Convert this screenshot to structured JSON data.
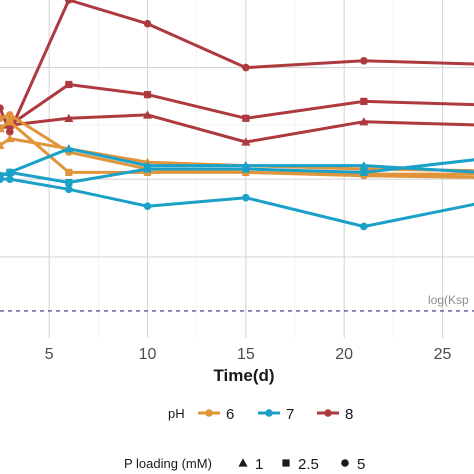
{
  "chart_data": {
    "type": "line",
    "xlabel": "Time(d)",
    "x_ticks": [
      5,
      10,
      15,
      20,
      25
    ],
    "xlim": [
      2.5,
      26.6
    ],
    "ylim": [
      0,
      10
    ],
    "grid": true,
    "reference_line": {
      "label": "log(Ksp",
      "y": 0.8,
      "color": "#33338c",
      "style": "dashed"
    },
    "legend": {
      "position": "bottom",
      "ph": {
        "title": "pH",
        "labels": [
          "6",
          "7",
          "8"
        ]
      },
      "ploading": {
        "title": "P loading (mM)",
        "labels": [
          "1",
          "2.5",
          "5"
        ]
      }
    },
    "colors": {
      "6": "#e0953a",
      "7": "#1ba0c8",
      "8": "#ad3a3e"
    },
    "series": [
      {
        "ph": "8",
        "p_loading": "5",
        "x": [
          2.5,
          3,
          6,
          10,
          15,
          21,
          27
        ],
        "y": [
          6.8,
          6.1,
          10.0,
          9.3,
          8.0,
          8.2,
          8.1
        ]
      },
      {
        "ph": "8",
        "p_loading": "2.5",
        "x": [
          2.5,
          3,
          6,
          10,
          15,
          21,
          27
        ],
        "y": [
          6.2,
          6.3,
          7.5,
          7.2,
          6.5,
          7.0,
          6.9
        ]
      },
      {
        "ph": "8",
        "p_loading": "1",
        "x": [
          2.5,
          3,
          6,
          10,
          15,
          21,
          27
        ],
        "y": [
          6.2,
          6.3,
          6.5,
          6.6,
          5.8,
          6.4,
          6.3
        ]
      },
      {
        "ph": "6",
        "p_loading": "5",
        "x": [
          2.5,
          3,
          6,
          10,
          15,
          21,
          27
        ],
        "y": [
          6.5,
          6.6,
          5.5,
          5.0,
          4.9,
          4.8,
          4.75
        ]
      },
      {
        "ph": "6",
        "p_loading": "2.5",
        "x": [
          2.5,
          3,
          6,
          10,
          15,
          21,
          27
        ],
        "y": [
          6.2,
          6.4,
          4.9,
          4.9,
          4.9,
          4.85,
          4.85
        ]
      },
      {
        "ph": "6",
        "p_loading": "1",
        "x": [
          2.5,
          3,
          6,
          10,
          15,
          21,
          27
        ],
        "y": [
          5.7,
          5.9,
          5.6,
          5.2,
          5.1,
          5.0,
          4.95
        ]
      },
      {
        "ph": "7",
        "p_loading": "5",
        "x": [
          2.5,
          3,
          6,
          10,
          15,
          21,
          27
        ],
        "y": [
          4.7,
          4.7,
          4.4,
          3.9,
          4.15,
          3.3,
          4.0
        ]
      },
      {
        "ph": "7",
        "p_loading": "2.5",
        "x": [
          2.5,
          3,
          6,
          10,
          15,
          21,
          27
        ],
        "y": [
          4.8,
          4.9,
          4.6,
          5.0,
          5.0,
          4.9,
          5.3
        ]
      },
      {
        "ph": "7",
        "p_loading": "1",
        "x": [
          2.5,
          3,
          6,
          10,
          15,
          21,
          27
        ],
        "y": [
          4.8,
          4.9,
          5.6,
          5.1,
          5.1,
          5.1,
          4.9
        ]
      }
    ]
  }
}
